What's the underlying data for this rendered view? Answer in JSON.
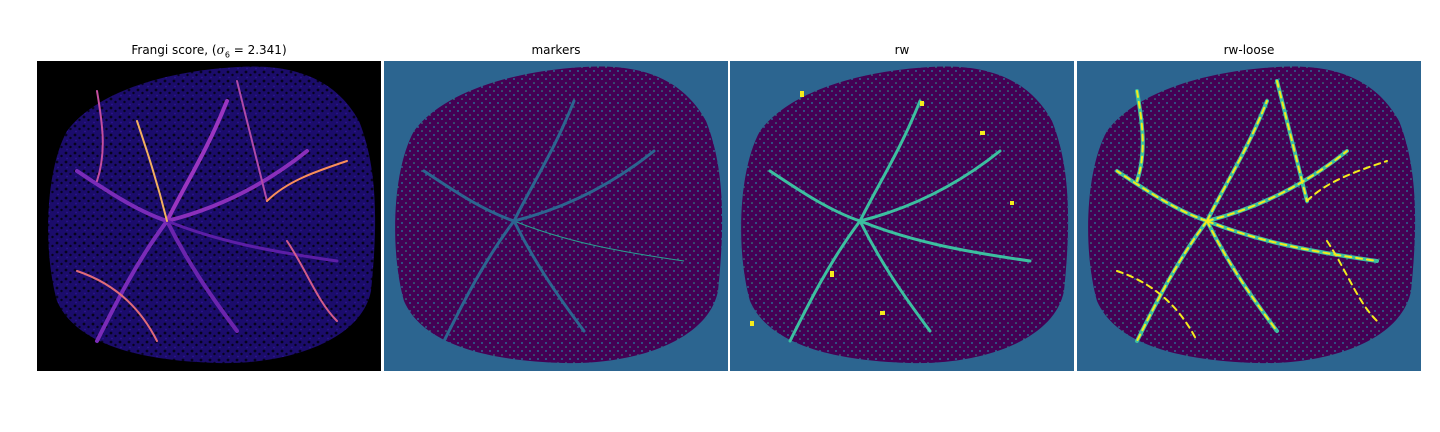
{
  "panels": [
    {
      "title": "Frangi score, (",
      "title_math": "σ",
      "title_sub": "6",
      "title_tail": " = 2.341)"
    },
    {
      "title": "markers"
    },
    {
      "title": "rw"
    },
    {
      "title": "rw-loose"
    }
  ],
  "colors": {
    "figure_bg": "#ffffff",
    "frangi_bg": "#000000",
    "frangi_tissue": "#1b0c6b",
    "frangi_vessel_low": "#5c1ea6",
    "frangi_vessel_high": "#f98e5a",
    "seg_bg": "#2c6590",
    "seg_tissue": "#440154",
    "seg_marker": "#2a9d8f",
    "seg_vessel": "#3cc0a0",
    "seg_highlight": "#f4ec1c"
  }
}
